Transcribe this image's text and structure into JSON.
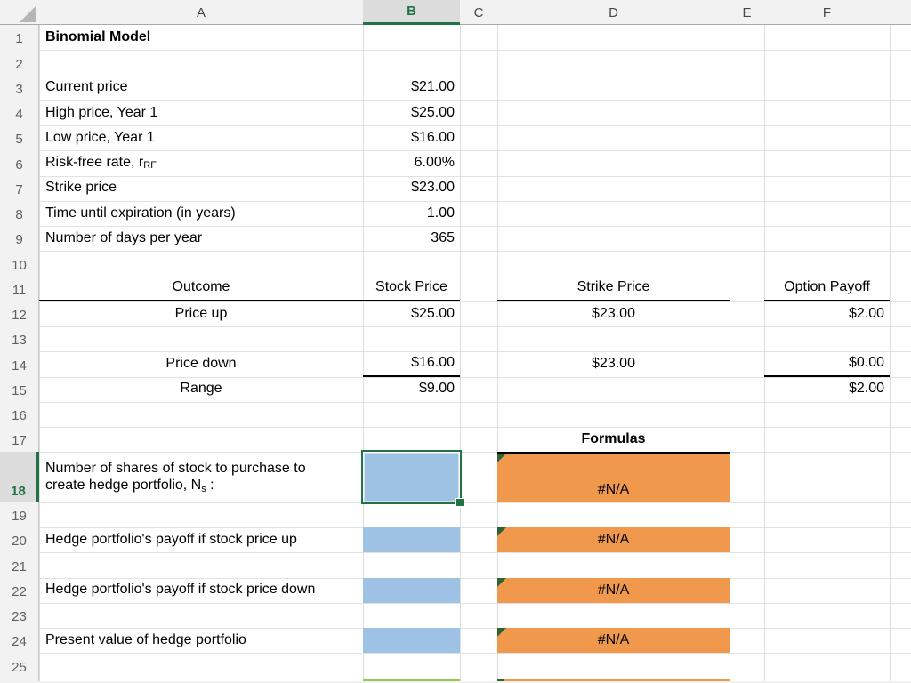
{
  "app": {
    "kind": "spreadsheet"
  },
  "colors": {
    "accent_green": "#217346",
    "input_cell_blue": "#9ec2e4",
    "formula_cell_orange": "#f0994d",
    "error_flag_green": "#2f6336",
    "next_row_green": "#93c954",
    "border_black": "#000000"
  },
  "column_headers": [
    "A",
    "B",
    "C",
    "D",
    "E",
    "F"
  ],
  "selected_column": "B",
  "row_headers": [
    "1",
    "2",
    "3",
    "4",
    "5",
    "6",
    "7",
    "8",
    "9",
    "10",
    "11",
    "12",
    "13",
    "14",
    "15",
    "16",
    "17",
    "18",
    "19",
    "20",
    "21",
    "22",
    "23",
    "24",
    "25"
  ],
  "selected_row": "18",
  "cells": {
    "title": "Binomial Model",
    "inputs": [
      {
        "label": "Current price",
        "value": "$21.00"
      },
      {
        "label": "High price, Year 1",
        "value": "$25.00"
      },
      {
        "label": "Low price, Year 1",
        "value": "$16.00"
      },
      {
        "label": "Risk-free rate, r",
        "label_sub": "RF",
        "value": "6.00%"
      },
      {
        "label": "Strike price",
        "value": "$23.00"
      },
      {
        "label": "Time until expiration (in years)",
        "value": "1.00"
      },
      {
        "label": "Number of days per year",
        "value": "365"
      }
    ],
    "outcome_table": {
      "col_headers": {
        "outcome": "Outcome",
        "stock": "Stock Price",
        "strike": "Strike Price",
        "payoff": "Option Payoff"
      },
      "price_up": {
        "label": "Price up",
        "stock": "$25.00",
        "strike": "$23.00",
        "payoff": "$2.00"
      },
      "price_down": {
        "label": "Price down",
        "stock": "$16.00",
        "strike": "$23.00",
        "payoff": "$0.00"
      },
      "range": {
        "label": "Range",
        "stock": "$9.00",
        "payoff": "$2.00"
      }
    },
    "formulas_header": "Formulas",
    "hedge_rows": [
      {
        "label_line1": "Number of shares of stock to purchase to",
        "label_line2": "create hedge portfolio, N",
        "label_sub": "s",
        "label_suffix": " :",
        "formula_result": "#N/A"
      },
      {
        "label": "Hedge portfolio's payoff if stock price up",
        "formula_result": "#N/A"
      },
      {
        "label": "Hedge portfolio's payoff if stock price down",
        "formula_result": "#N/A"
      },
      {
        "label": "Present value of hedge portfolio",
        "formula_result": "#N/A"
      }
    ]
  }
}
